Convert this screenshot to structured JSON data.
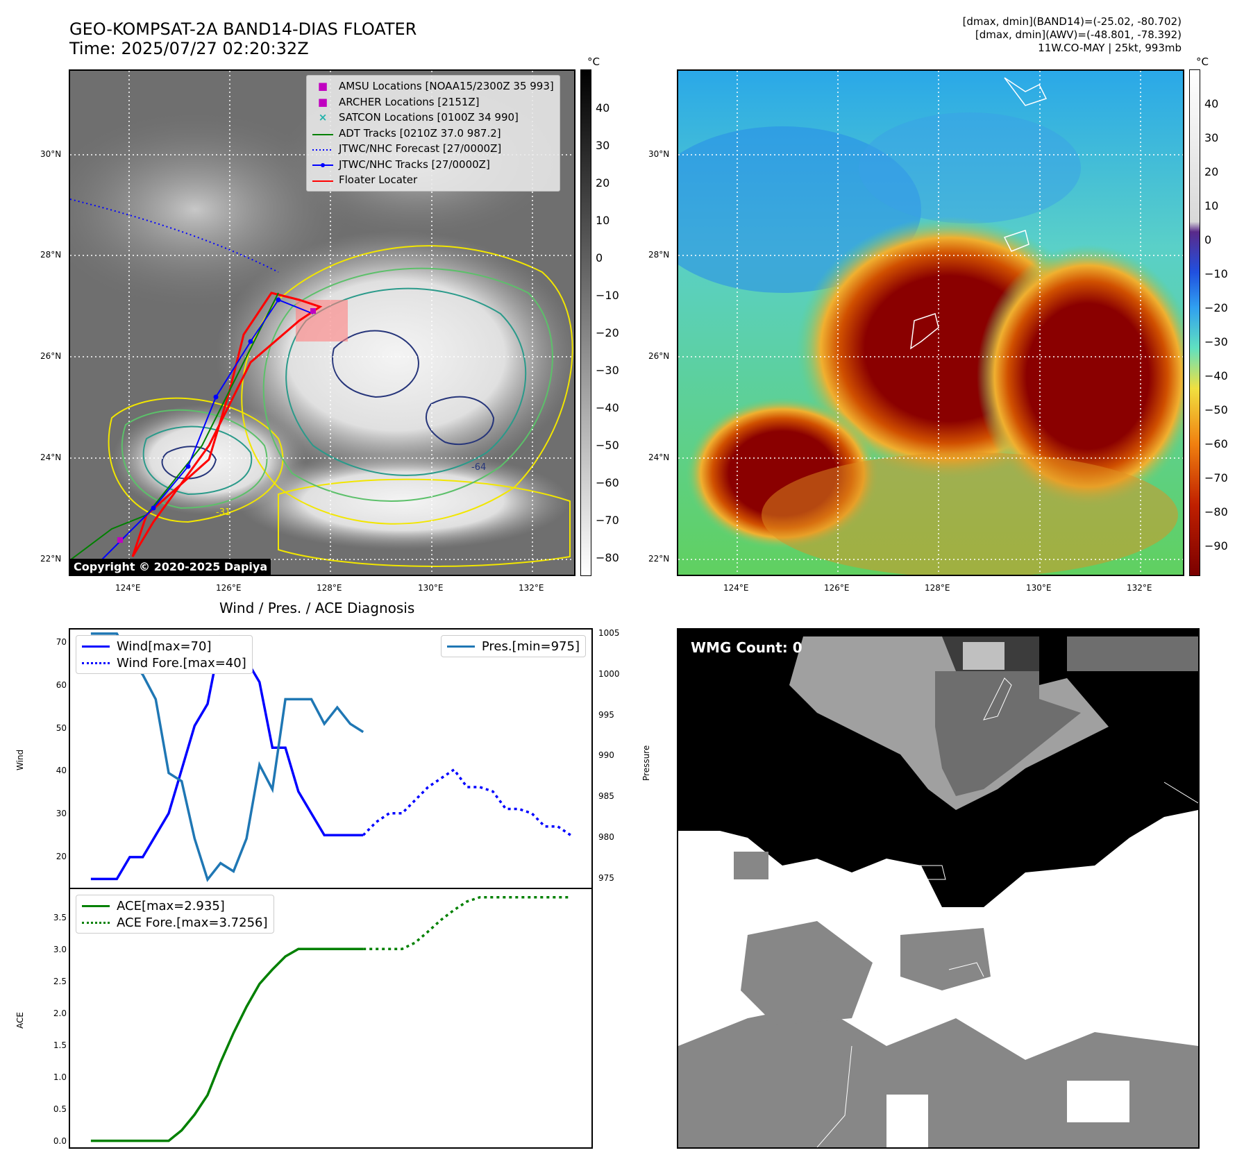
{
  "header": {
    "title_line1": "GEO-KOMPSAT-2A BAND14-DIAS FLOATER",
    "title_line2": "Time: 2025/07/27 02:20:32Z",
    "info_line1": "[dmax, dmin](BAND14)=(-25.02, -80.702)",
    "info_line2": "[dmax, dmin](AWV)=(-48.801, -78.392)",
    "info_line3": "11W.CO-MAY | 25kt, 993mb"
  },
  "maps": {
    "lat_ticks": [
      "30°N",
      "28°N",
      "26°N",
      "24°N",
      "22°N"
    ],
    "lon_ticks": [
      "124°E",
      "126°E",
      "128°E",
      "130°E",
      "132°E"
    ],
    "copyright": "Copyright © 2020-2025 Dapiya",
    "contour_labels": [
      "-64",
      "-31"
    ]
  },
  "colorbar_left": {
    "unit": "°C",
    "ticks": [
      "40",
      "30",
      "20",
      "10",
      "0",
      "−10",
      "−20",
      "−30",
      "−40",
      "−50",
      "−60",
      "−70",
      "−80"
    ]
  },
  "colorbar_right": {
    "unit": "°C",
    "ticks": [
      "40",
      "30",
      "20",
      "10",
      "0",
      "−10",
      "−20",
      "−30",
      "−40",
      "−50",
      "−60",
      "−70",
      "−80",
      "−90"
    ]
  },
  "map_legend": [
    {
      "label": "AMSU Locations [NOAA15/2300Z 35 993]",
      "symbol": "square",
      "color": "#c000c0"
    },
    {
      "label": "ARCHER Locations [2151Z]",
      "symbol": "square",
      "color": "#c000c0"
    },
    {
      "label": "SATCON Locations [0100Z 34 990]",
      "symbol": "x",
      "color": "#20b2aa"
    },
    {
      "label": "ADT Tracks [0210Z 37.0 987.2]",
      "symbol": "line",
      "color": "#008000"
    },
    {
      "label": "JTWC/NHC Forecast [27/0000Z]",
      "symbol": "dotted",
      "color": "#0000ff"
    },
    {
      "label": "JTWC/NHC Tracks [27/0000Z]",
      "symbol": "line-dot",
      "color": "#0000ff"
    },
    {
      "label": "Floater Locater",
      "symbol": "line",
      "color": "#ff0000"
    }
  ],
  "wmg": {
    "label": "WMG Count: 0"
  },
  "diagnosis": {
    "title": "Wind / Pres. / ACE Diagnosis",
    "wind_ylabel": "Wind",
    "pres_ylabel": "Pressure",
    "ace_ylabel": "ACE",
    "wind_ticks": [
      "70",
      "60",
      "50",
      "40",
      "30",
      "20"
    ],
    "pres_ticks": [
      "1005",
      "1000",
      "995",
      "990",
      "985",
      "980",
      "975"
    ],
    "ace_ticks": [
      "3.5",
      "3.0",
      "2.5",
      "2.0",
      "1.5",
      "1.0",
      "0.5",
      "0.0"
    ],
    "legend_wind": "Wind[max=70]",
    "legend_wind_fore": "Wind Fore.[max=40]",
    "legend_pres": "Pres.[min=975]",
    "legend_ace": "ACE[max=2.935]",
    "legend_ace_fore": "ACE Fore.[max=3.7256]"
  },
  "chart_data": [
    {
      "type": "line",
      "title": "Wind / Pres. / ACE Diagnosis",
      "ylabel": "Wind",
      "ylim": [
        13,
        72
      ],
      "series": [
        {
          "name": "Wind[max=70]",
          "color": "#0000ff",
          "style": "solid",
          "x": [
            0,
            1,
            2,
            3,
            4,
            5,
            6,
            7,
            8,
            9,
            10,
            11,
            12,
            13,
            14,
            15,
            16,
            17,
            18,
            19,
            20,
            21
          ],
          "values": [
            15,
            15,
            15,
            20,
            20,
            25,
            30,
            40,
            50,
            55,
            70,
            65,
            65,
            60,
            45,
            45,
            35,
            30,
            25,
            25,
            25,
            25
          ]
        },
        {
          "name": "Wind Fore.[max=40]",
          "color": "#0000ff",
          "style": "dotted",
          "x": [
            21,
            22,
            23,
            24,
            25,
            26,
            27,
            28,
            29,
            30,
            31,
            32,
            33,
            34,
            35,
            36,
            37
          ],
          "values": [
            25,
            28,
            30,
            30,
            33,
            36,
            38,
            40,
            36,
            36,
            35,
            31,
            31,
            30,
            27,
            27,
            25
          ]
        }
      ]
    },
    {
      "type": "line",
      "ylabel": "Pressure",
      "ylim": [
        974,
        1005.5
      ],
      "series": [
        {
          "name": "Pres.[min=975]",
          "color": "#1f77b4",
          "style": "solid",
          "x": [
            0,
            1,
            2,
            3,
            4,
            5,
            6,
            7,
            8,
            9,
            10,
            11,
            12,
            13,
            14,
            15,
            16,
            17,
            18,
            19,
            20,
            21
          ],
          "values": [
            1005,
            1005,
            1005,
            1002,
            1000,
            997,
            988,
            987,
            980,
            975,
            977,
            976,
            980,
            989,
            986,
            997,
            997,
            997,
            994,
            996,
            994,
            993
          ]
        }
      ]
    },
    {
      "type": "line",
      "ylabel": "ACE",
      "ylim": [
        -0.1,
        3.85
      ],
      "series": [
        {
          "name": "ACE[max=2.935]",
          "color": "#008000",
          "style": "solid",
          "x": [
            0,
            1,
            2,
            3,
            4,
            5,
            6,
            7,
            8,
            9,
            10,
            11,
            12,
            13,
            14,
            15,
            16,
            17,
            18,
            19,
            20,
            21
          ],
          "values": [
            0,
            0,
            0,
            0,
            0,
            0,
            0,
            0.16,
            0.4,
            0.7,
            1.2,
            1.65,
            2.05,
            2.4,
            2.62,
            2.82,
            2.935,
            2.935,
            2.935,
            2.935,
            2.935,
            2.935
          ]
        },
        {
          "name": "ACE Fore.[max=3.7256]",
          "color": "#008000",
          "style": "dotted",
          "x": [
            21,
            22,
            23,
            24,
            25,
            26,
            27,
            28,
            29,
            30,
            31,
            32,
            33,
            34,
            35,
            36,
            37
          ],
          "values": [
            2.935,
            2.935,
            2.935,
            2.935,
            3.03,
            3.2,
            3.38,
            3.53,
            3.66,
            3.7256,
            3.7256,
            3.7256,
            3.7256,
            3.7256,
            3.7256,
            3.7256,
            3.7256
          ]
        }
      ]
    }
  ]
}
